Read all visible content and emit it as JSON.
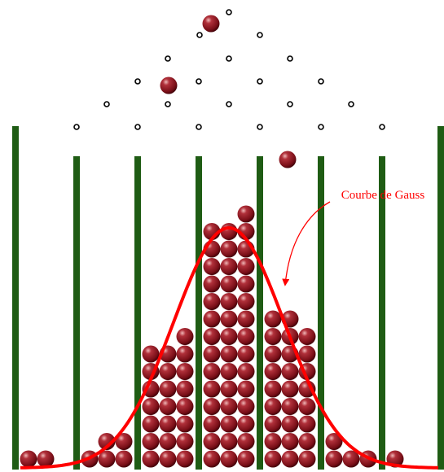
{
  "annotation": {
    "label": "Courbe de Gauss"
  }
}
